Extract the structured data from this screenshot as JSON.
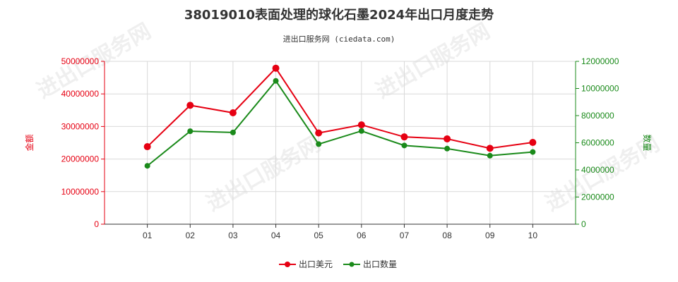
{
  "title": "38019010表面处理的球化石墨2024年出口月度走势",
  "subtitle": "进出口服务网 (ciedata.com)",
  "watermark": "进出口服务网",
  "colors": {
    "left_axis": "#e60012",
    "right_axis": "#1a8a1a",
    "series_usd": "#e60012",
    "series_qty": "#1a8a1a",
    "grid": "#d9d9d9",
    "axis": "#333333"
  },
  "chart_data": {
    "type": "line",
    "categories": [
      "01",
      "02",
      "03",
      "04",
      "05",
      "06",
      "07",
      "08",
      "09",
      "10"
    ],
    "left_axis": {
      "label": "金额",
      "ylim": [
        0,
        50000000
      ],
      "ticks": [
        0,
        10000000,
        20000000,
        30000000,
        40000000,
        50000000
      ],
      "tick_labels": [
        "0",
        "10000000",
        "20000000",
        "30000000",
        "40000000",
        "50000000"
      ]
    },
    "right_axis": {
      "label": "数量",
      "ylim": [
        0,
        12000000
      ],
      "ticks": [
        0,
        2000000,
        4000000,
        6000000,
        8000000,
        10000000,
        12000000
      ],
      "tick_labels": [
        "0",
        "2000000",
        "4000000",
        "6000000",
        "8000000",
        "10000000",
        "12000000"
      ]
    },
    "series": [
      {
        "name": "出口美元",
        "axis": "left",
        "values": [
          23800000,
          36500000,
          34200000,
          47900000,
          28000000,
          30500000,
          26800000,
          26200000,
          23300000,
          25100000
        ]
      },
      {
        "name": "出口数量",
        "axis": "right",
        "values": [
          4300000,
          6850000,
          6760000,
          10560000,
          5900000,
          6870000,
          5800000,
          5570000,
          5050000,
          5320000
        ]
      }
    ],
    "grid": true,
    "legend_position": "bottom"
  }
}
